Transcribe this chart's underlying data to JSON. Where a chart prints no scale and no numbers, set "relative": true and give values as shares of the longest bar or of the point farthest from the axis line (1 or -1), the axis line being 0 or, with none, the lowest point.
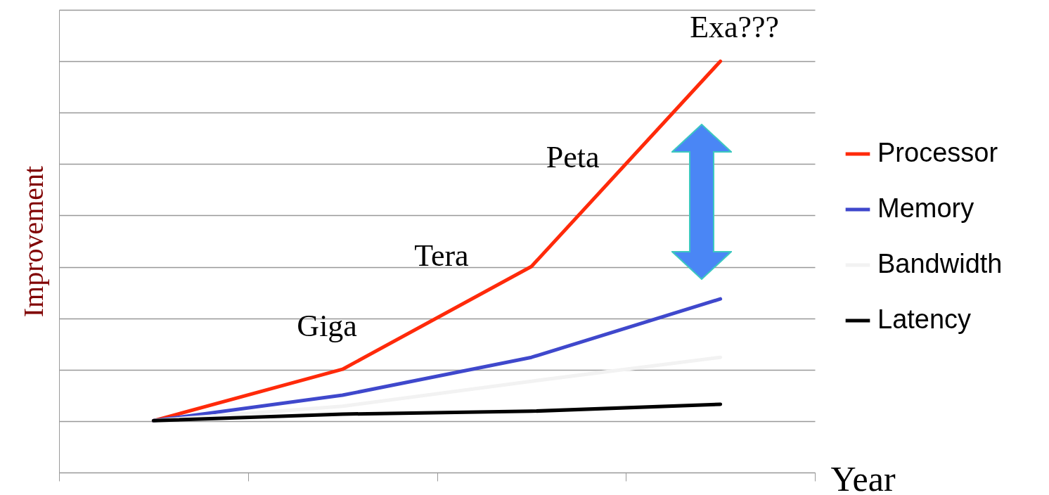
{
  "chart_data": {
    "type": "line",
    "xlabel": "Year",
    "ylabel": "Improvement",
    "categories": [
      null,
      null,
      null,
      null
    ],
    "relative": true,
    "series": [
      {
        "name": "Processor",
        "color": "#ff2a0a",
        "values": [
          0.126,
          0.251,
          0.501,
          1
        ]
      },
      {
        "name": "Memory",
        "color": "#3f48cc",
        "values": [
          0.126,
          0.188,
          0.28,
          0.422
        ]
      },
      {
        "name": "Bandwidth",
        "color": "#f2f2f2",
        "values": [
          0.126,
          0.161,
          0.222,
          0.28
        ]
      },
      {
        "name": "Latency",
        "color": "#000000",
        "values": [
          0.126,
          0.142,
          0.149,
          0.166
        ]
      }
    ],
    "annotations": [
      "Giga",
      "Tera",
      "Peta",
      "Exa???"
    ],
    "grid": "y",
    "legend": "right",
    "marker": "none",
    "line_style": "solid"
  }
}
